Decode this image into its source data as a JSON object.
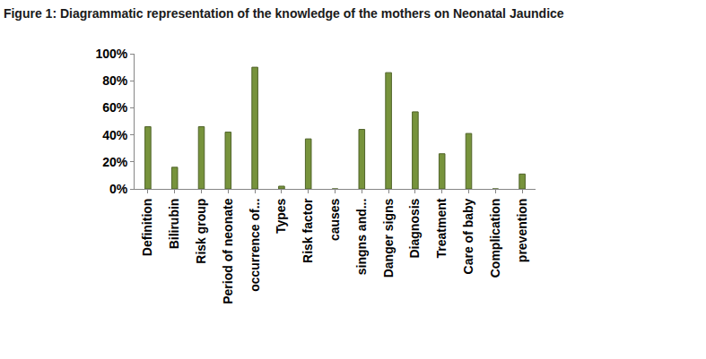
{
  "chart_data": {
    "type": "bar",
    "title": "Figure 1: Diagrammatic representation of the knowledge of the mothers on Neonatal Jaundice",
    "categories": [
      "Definition",
      "Bilirubin",
      "Risk group",
      "Period of neonate",
      "occurrence of...",
      "Types",
      "Risk factor",
      "causes",
      "singns and...",
      "Danger signs",
      "Diagnosis",
      "Treatment",
      "Care of baby",
      "Complication",
      "prevention"
    ],
    "values": [
      46,
      16,
      46,
      42,
      90,
      2,
      37,
      0,
      44,
      86,
      57,
      26,
      41,
      0,
      11
    ],
    "color": "#77933c",
    "ylim": [
      0,
      100
    ],
    "yticks": [
      {
        "value": 0,
        "label": "0%"
      },
      {
        "value": 20,
        "label": "20%"
      },
      {
        "value": 40,
        "label": "40%"
      },
      {
        "value": 60,
        "label": "60%"
      },
      {
        "value": 80,
        "label": "80%"
      },
      {
        "value": 100,
        "label": "100%"
      }
    ],
    "grid": false
  }
}
